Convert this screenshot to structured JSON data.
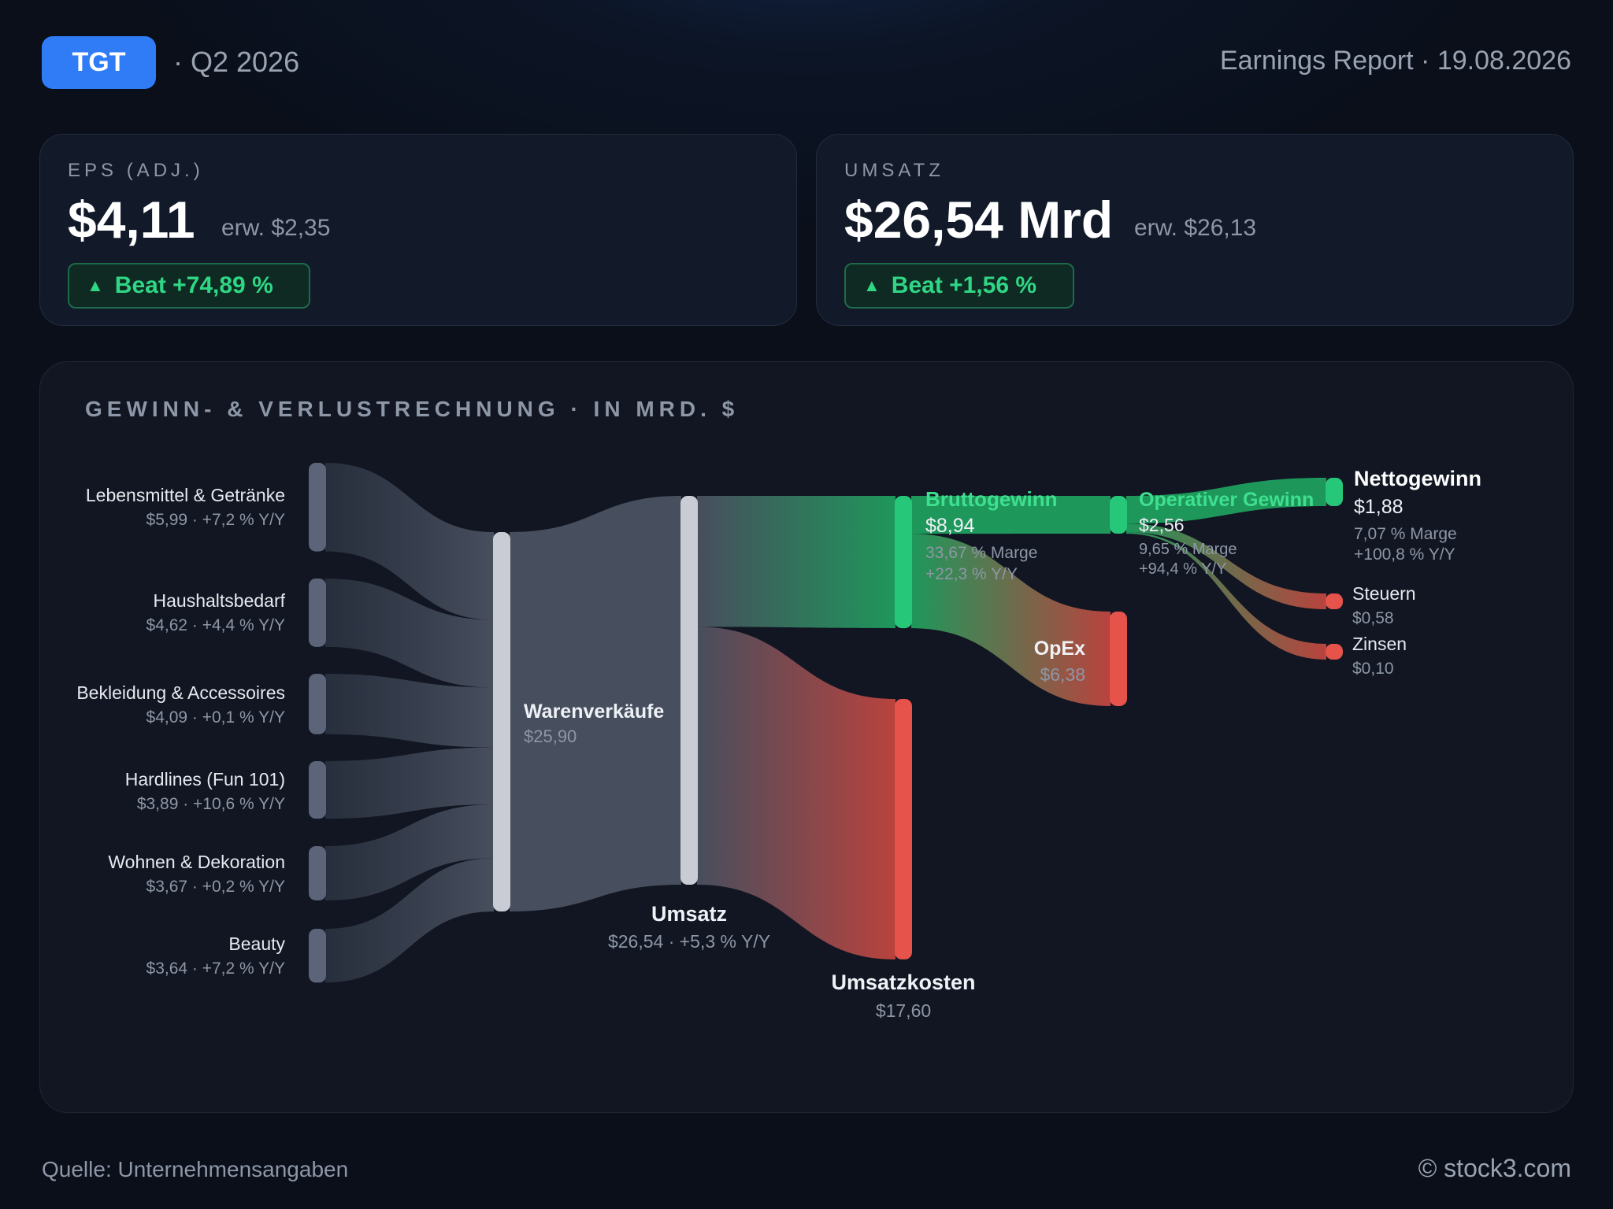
{
  "header": {
    "ticker": "TGT",
    "quarter": "· Q2 2026",
    "report": "Earnings Report · 19.08.2026"
  },
  "kpis": {
    "eps": {
      "label": "EPS (ADJ.)",
      "value": "$4,11",
      "estimate": "erw. $2,35",
      "beat": "Beat +74,89 %"
    },
    "revenue": {
      "label": "UMSATZ",
      "value": "$26,54 Mrd",
      "estimate": "erw. $26,13",
      "beat": "Beat +1,56 %"
    }
  },
  "panel": {
    "title": "GEWINN- & VERLUSTRECHNUNG · IN MRD. $"
  },
  "footer": {
    "source": "Quelle: Unternehmensangaben",
    "credit": "© stock3.com"
  },
  "colors": {
    "accent": "#2f7cf6",
    "profit": "#27c77a",
    "cost": "#e5534b",
    "neutral": "#c9ccd4",
    "segment": "#5b6478"
  },
  "chart_data": {
    "type": "sankey",
    "title": "GEWINN- & VERLUSTRECHNUNG · IN MRD. $",
    "unit": "Mrd. $",
    "nodes": [
      {
        "id": "lebensmittel",
        "label": "Lebensmittel & Getränke",
        "value": 5.99,
        "sub": "$5,99 · +7,2 % Y/Y",
        "kind": "segment"
      },
      {
        "id": "haushalt",
        "label": "Haushaltsbedarf",
        "value": 4.62,
        "sub": "$4,62 · +4,4 % Y/Y",
        "kind": "segment"
      },
      {
        "id": "bekleidung",
        "label": "Bekleidung & Accessoires",
        "value": 4.09,
        "sub": "$4,09 · +0,1 % Y/Y",
        "kind": "segment"
      },
      {
        "id": "hardlines",
        "label": "Hardlines (Fun 101)",
        "value": 3.89,
        "sub": "$3,89 · +10,6 % Y/Y",
        "kind": "segment"
      },
      {
        "id": "wohnen",
        "label": "Wohnen & Dekoration",
        "value": 3.67,
        "sub": "$3,67 · +0,2 % Y/Y",
        "kind": "segment"
      },
      {
        "id": "beauty",
        "label": "Beauty",
        "value": 3.64,
        "sub": "$3,64 · +7,2 % Y/Y",
        "kind": "segment"
      },
      {
        "id": "waren",
        "label": "Warenverkäufe",
        "value": 25.9,
        "sub": "$25,90",
        "kind": "neutral"
      },
      {
        "id": "umsatz",
        "label": "Umsatz",
        "value": 26.54,
        "sub": "$26,54 · +5,3 % Y/Y",
        "kind": "neutral"
      },
      {
        "id": "brutto",
        "label": "Bruttogewinn",
        "value": 8.94,
        "sub": "$8,94",
        "extra": [
          "33,67 % Marge",
          "+22,3 % Y/Y"
        ],
        "kind": "profit"
      },
      {
        "id": "kosten",
        "label": "Umsatzkosten",
        "value": 17.6,
        "sub": "$17,60",
        "kind": "cost"
      },
      {
        "id": "operativ",
        "label": "Operativer Gewinn",
        "value": 2.56,
        "sub": "$2,56",
        "extra": [
          "9,65 % Marge",
          "+94,4 % Y/Y"
        ],
        "kind": "profit"
      },
      {
        "id": "opex",
        "label": "OpEx",
        "value": 6.38,
        "sub": "$6,38",
        "kind": "cost"
      },
      {
        "id": "netto",
        "label": "Nettogewinn",
        "value": 1.88,
        "sub": "$1,88",
        "extra": [
          "7,07 % Marge",
          "+100,8 % Y/Y"
        ],
        "kind": "profit"
      },
      {
        "id": "steuern",
        "label": "Steuern",
        "value": 0.58,
        "sub": "$0,58",
        "kind": "cost"
      },
      {
        "id": "zinsen",
        "label": "Zinsen",
        "value": 0.1,
        "sub": "$0,10",
        "kind": "cost"
      }
    ],
    "links": [
      {
        "source": "lebensmittel",
        "target": "waren",
        "value": 5.99
      },
      {
        "source": "haushalt",
        "target": "waren",
        "value": 4.62
      },
      {
        "source": "bekleidung",
        "target": "waren",
        "value": 4.09
      },
      {
        "source": "hardlines",
        "target": "waren",
        "value": 3.89
      },
      {
        "source": "wohnen",
        "target": "waren",
        "value": 3.67
      },
      {
        "source": "beauty",
        "target": "waren",
        "value": 3.64
      },
      {
        "source": "waren",
        "target": "umsatz",
        "value": 25.9
      },
      {
        "source": "umsatz",
        "target": "brutto",
        "value": 8.94
      },
      {
        "source": "umsatz",
        "target": "kosten",
        "value": 17.6
      },
      {
        "source": "brutto",
        "target": "operativ",
        "value": 2.56
      },
      {
        "source": "brutto",
        "target": "opex",
        "value": 6.38
      },
      {
        "source": "operativ",
        "target": "netto",
        "value": 1.88
      },
      {
        "source": "operativ",
        "target": "steuern",
        "value": 0.58
      },
      {
        "source": "operativ",
        "target": "zinsen",
        "value": 0.1
      }
    ]
  }
}
